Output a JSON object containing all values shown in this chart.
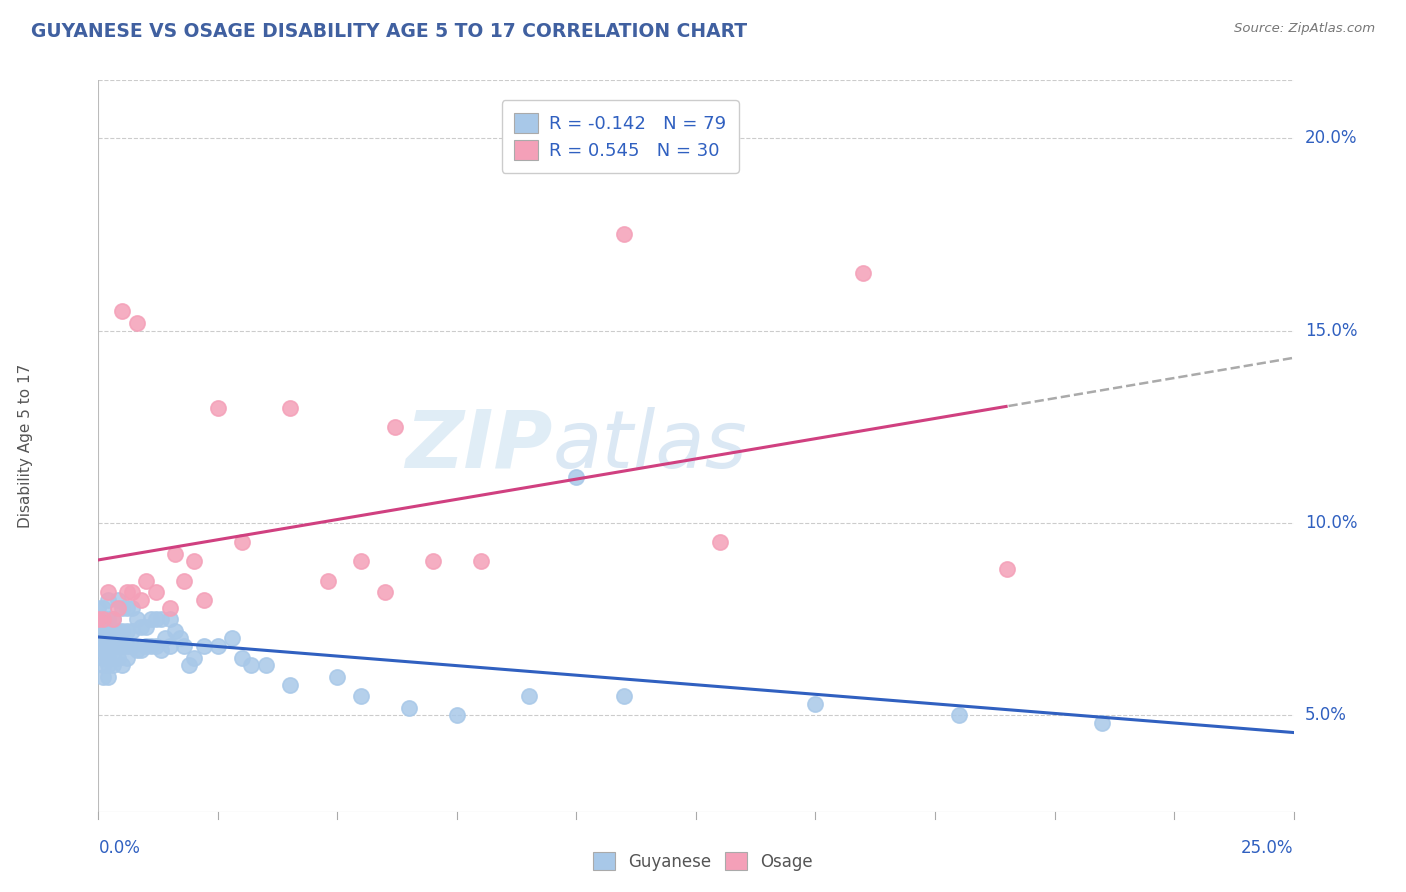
{
  "title": "GUYANESE VS OSAGE DISABILITY AGE 5 TO 17 CORRELATION CHART",
  "source": "Source: ZipAtlas.com",
  "xlabel_bottom_left": "0.0%",
  "xlabel_bottom_right": "25.0%",
  "ylabel": "Disability Age 5 to 17",
  "ylabel_right_ticks": [
    "5.0%",
    "10.0%",
    "15.0%",
    "20.0%"
  ],
  "ylabel_right_values": [
    0.05,
    0.1,
    0.15,
    0.2
  ],
  "xmin": 0.0,
  "xmax": 0.25,
  "ymin": 0.025,
  "ymax": 0.215,
  "legend_r1": "R = -0.142",
  "legend_n1": "N = 79",
  "legend_r2": "R = 0.545",
  "legend_n2": "N = 30",
  "blue_color": "#a8c8e8",
  "pink_color": "#f4a0b8",
  "trend_blue": "#3060c0",
  "trend_pink": "#d04080",
  "watermark_zip": "ZIP",
  "watermark_atlas": "atlas",
  "blue_x": [
    0.0,
    0.0,
    0.0,
    0.0,
    0.0,
    0.001,
    0.001,
    0.001,
    0.001,
    0.001,
    0.001,
    0.001,
    0.001,
    0.002,
    0.002,
    0.002,
    0.002,
    0.002,
    0.002,
    0.002,
    0.002,
    0.003,
    0.003,
    0.003,
    0.003,
    0.003,
    0.003,
    0.004,
    0.004,
    0.004,
    0.004,
    0.005,
    0.005,
    0.005,
    0.005,
    0.006,
    0.006,
    0.006,
    0.006,
    0.007,
    0.007,
    0.007,
    0.008,
    0.008,
    0.009,
    0.009,
    0.01,
    0.01,
    0.011,
    0.011,
    0.012,
    0.012,
    0.013,
    0.013,
    0.014,
    0.015,
    0.015,
    0.016,
    0.017,
    0.018,
    0.019,
    0.02,
    0.022,
    0.025,
    0.028,
    0.03,
    0.032,
    0.035,
    0.04,
    0.05,
    0.055,
    0.065,
    0.075,
    0.09,
    0.1,
    0.11,
    0.15,
    0.18,
    0.21
  ],
  "blue_y": [
    0.068,
    0.07,
    0.072,
    0.075,
    0.078,
    0.06,
    0.063,
    0.065,
    0.067,
    0.07,
    0.072,
    0.075,
    0.078,
    0.06,
    0.063,
    0.065,
    0.068,
    0.07,
    0.073,
    0.075,
    0.08,
    0.063,
    0.065,
    0.068,
    0.07,
    0.072,
    0.075,
    0.065,
    0.068,
    0.072,
    0.08,
    0.063,
    0.068,
    0.072,
    0.078,
    0.065,
    0.068,
    0.072,
    0.078,
    0.068,
    0.072,
    0.078,
    0.067,
    0.075,
    0.067,
    0.073,
    0.068,
    0.073,
    0.068,
    0.075,
    0.068,
    0.075,
    0.067,
    0.075,
    0.07,
    0.068,
    0.075,
    0.072,
    0.07,
    0.068,
    0.063,
    0.065,
    0.068,
    0.068,
    0.07,
    0.065,
    0.063,
    0.063,
    0.058,
    0.06,
    0.055,
    0.052,
    0.05,
    0.055,
    0.112,
    0.055,
    0.053,
    0.05,
    0.048
  ],
  "pink_x": [
    0.0,
    0.001,
    0.002,
    0.003,
    0.004,
    0.005,
    0.006,
    0.007,
    0.008,
    0.009,
    0.01,
    0.012,
    0.015,
    0.016,
    0.018,
    0.02,
    0.022,
    0.025,
    0.03,
    0.04,
    0.048,
    0.055,
    0.06,
    0.062,
    0.07,
    0.08,
    0.11,
    0.13,
    0.16,
    0.19
  ],
  "pink_y": [
    0.075,
    0.075,
    0.082,
    0.075,
    0.078,
    0.155,
    0.082,
    0.082,
    0.152,
    0.08,
    0.085,
    0.082,
    0.078,
    0.092,
    0.085,
    0.09,
    0.08,
    0.13,
    0.095,
    0.13,
    0.085,
    0.09,
    0.082,
    0.125,
    0.09,
    0.09,
    0.175,
    0.095,
    0.165,
    0.088
  ]
}
